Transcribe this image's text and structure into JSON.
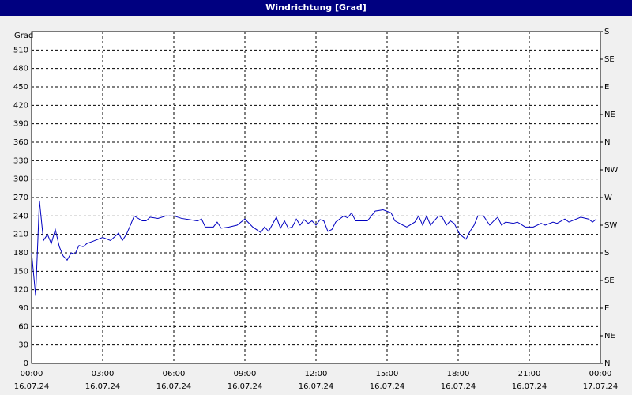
{
  "chart_data": {
    "type": "line",
    "title": "Windrichtung [Grad]",
    "y_label": "Grad",
    "x": [
      0,
      0.17,
      0.33,
      0.5,
      0.67,
      0.83,
      1,
      1.17,
      1.33,
      1.5,
      1.67,
      1.83,
      2,
      2.17,
      2.33,
      2.67,
      3,
      3.33,
      3.67,
      3.83,
      4,
      4.17,
      4.33,
      4.67,
      4.83,
      5,
      5.33,
      5.67,
      6,
      6.33,
      6.67,
      7,
      7.17,
      7.33,
      7.67,
      7.83,
      8,
      8.33,
      8.67,
      9,
      9.33,
      9.67,
      9.83,
      10,
      10.33,
      10.5,
      10.67,
      10.83,
      11,
      11.17,
      11.33,
      11.5,
      11.67,
      11.83,
      12,
      12.17,
      12.33,
      12.5,
      12.67,
      12.83,
      13.17,
      13.33,
      13.5,
      13.67,
      14.17,
      14.5,
      14.83,
      15.17,
      15.33,
      15.67,
      15.83,
      16.17,
      16.33,
      16.5,
      16.67,
      16.83,
      17.17,
      17.33,
      17.5,
      17.67,
      17.83,
      18.07,
      18.33,
      18.5,
      18.67,
      18.83,
      19.07,
      19.33,
      19.5,
      19.67,
      19.83,
      20,
      20.33,
      20.5,
      20.83,
      21.17,
      21.5,
      21.67,
      22,
      22.17,
      22.5,
      22.67,
      23.17,
      23.5,
      23.67,
      23.83
    ],
    "values": [
      180,
      110,
      265,
      200,
      210,
      195,
      218,
      190,
      175,
      168,
      180,
      178,
      192,
      190,
      195,
      200,
      205,
      200,
      212,
      200,
      210,
      225,
      240,
      232,
      232,
      238,
      236,
      240,
      240,
      236,
      234,
      232,
      235,
      222,
      222,
      230,
      220,
      222,
      225,
      235,
      222,
      213,
      222,
      215,
      238,
      220,
      232,
      220,
      222,
      235,
      225,
      234,
      228,
      232,
      225,
      234,
      232,
      215,
      218,
      230,
      240,
      237,
      245,
      232,
      232,
      248,
      250,
      245,
      232,
      225,
      222,
      230,
      240,
      225,
      240,
      225,
      240,
      238,
      225,
      232,
      228,
      210,
      202,
      215,
      225,
      240,
      240,
      225,
      232,
      238,
      225,
      230,
      228,
      230,
      222,
      222,
      228,
      225,
      230,
      228,
      235,
      230,
      238,
      235,
      230,
      235
    ],
    "color": "#0000c0",
    "xlim": [
      0,
      24
    ],
    "xticks": [
      {
        "value": 0,
        "label": "00:00"
      },
      {
        "value": 3,
        "label": "03:00"
      },
      {
        "value": 6,
        "label": "06:00"
      },
      {
        "value": 9,
        "label": "09:00"
      },
      {
        "value": 12,
        "label": "12:00"
      },
      {
        "value": 15,
        "label": "15:00"
      },
      {
        "value": 18,
        "label": "18:00"
      },
      {
        "value": 21,
        "label": "21:00"
      },
      {
        "value": 24,
        "label": "00:00"
      }
    ],
    "xtick_dates": [
      "16.07.24",
      "16.07.24",
      "16.07.24",
      "16.07.24",
      "16.07.24",
      "16.07.24",
      "16.07.24",
      "16.07.24",
      "17.07.24"
    ],
    "ylim": [
      0,
      540
    ],
    "yticks": [
      0,
      30,
      60,
      90,
      120,
      150,
      180,
      210,
      240,
      270,
      300,
      330,
      360,
      390,
      420,
      450,
      480,
      510
    ],
    "y2lim": [
      0,
      540
    ],
    "y2ticks": [
      {
        "value": 0,
        "label": "N"
      },
      {
        "value": 45,
        "label": "NE"
      },
      {
        "value": 90,
        "label": "E"
      },
      {
        "value": 135,
        "label": "SE"
      },
      {
        "value": 180,
        "label": "S"
      },
      {
        "value": 225,
        "label": "SW"
      },
      {
        "value": 270,
        "label": "W"
      },
      {
        "value": 315,
        "label": "NW"
      },
      {
        "value": 360,
        "label": "N"
      },
      {
        "value": 405,
        "label": "NE"
      },
      {
        "value": 450,
        "label": "E"
      },
      {
        "value": 495,
        "label": "SE"
      },
      {
        "value": 540,
        "label": "S"
      }
    ],
    "grid": true
  }
}
